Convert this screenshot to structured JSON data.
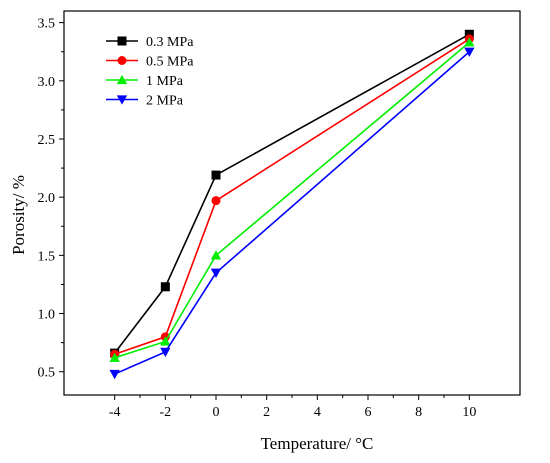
{
  "chart_data": {
    "type": "line",
    "xlabel": "Temperature/ °C",
    "ylabel": "Porosity/ %",
    "xlim": [
      -6,
      12
    ],
    "ylim": [
      0.3,
      3.6
    ],
    "xticks": [
      -4,
      -2,
      0,
      2,
      4,
      6,
      8,
      10
    ],
    "yticks": [
      0.5,
      1.0,
      1.5,
      2.0,
      2.5,
      3.0,
      3.5
    ],
    "x_tick_labels": [
      "-4",
      "-2",
      "0",
      "2",
      "4",
      "6",
      "8",
      "10"
    ],
    "y_tick_labels": [
      "0.5",
      "1.0",
      "1.5",
      "2.0",
      "2.5",
      "3.0",
      "3.5"
    ],
    "grid": false,
    "legend_position": "top-left",
    "x": [
      -4,
      -2,
      0,
      10
    ],
    "series": [
      {
        "name": "0.3 MPa",
        "values": [
          0.66,
          1.23,
          2.19,
          3.4
        ],
        "color": "#000000",
        "marker": "square"
      },
      {
        "name": "0.5 MPa",
        "values": [
          0.65,
          0.8,
          1.97,
          3.36
        ],
        "color": "#ff0000",
        "marker": "circle"
      },
      {
        "name": "1 MPa",
        "values": [
          0.62,
          0.76,
          1.5,
          3.33
        ],
        "color": "#00ee00",
        "marker": "triangle-up"
      },
      {
        "name": "2 MPa",
        "values": [
          0.48,
          0.67,
          1.35,
          3.25
        ],
        "color": "#0000ff",
        "marker": "triangle-down"
      }
    ]
  }
}
